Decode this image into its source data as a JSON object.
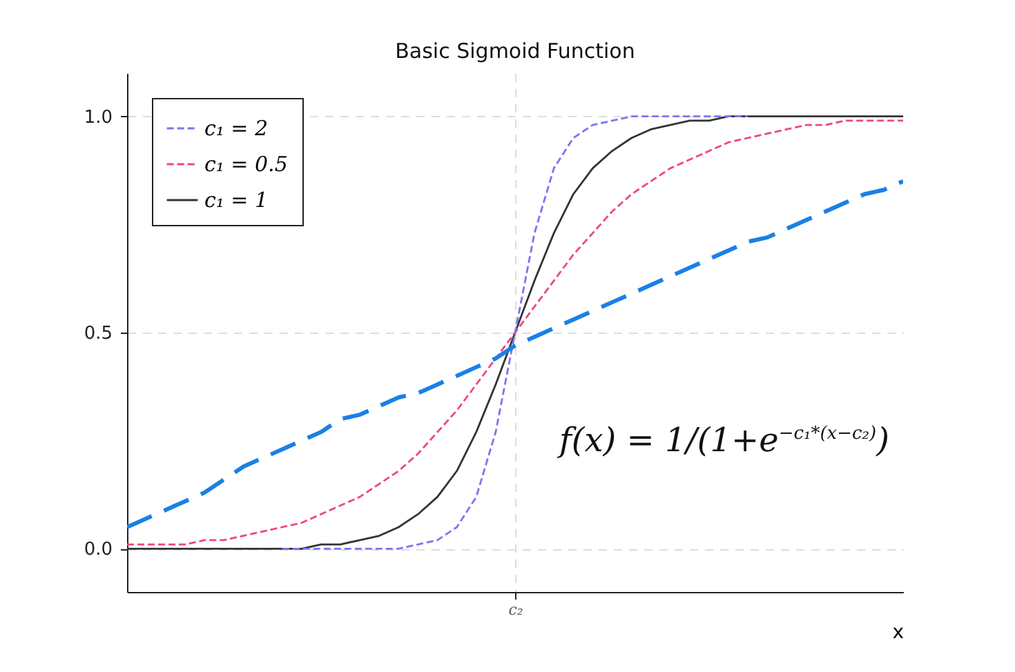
{
  "chart_data": {
    "type": "line",
    "title": "Basic Sigmoid Function",
    "xlabel": "x",
    "categories": [
      null,
      null,
      null,
      null,
      null,
      null,
      null,
      null,
      null,
      null,
      null,
      null,
      null,
      null,
      null,
      null,
      null,
      null,
      null,
      null,
      "c₂",
      null,
      null,
      null,
      null,
      null,
      null,
      null,
      null,
      null,
      null,
      null,
      null,
      null,
      null,
      null,
      null,
      null,
      null,
      null,
      null
    ],
    "series": [
      {
        "name": "c₁ = 2",
        "color": "#7777ee",
        "line_style": "dashed",
        "values": [
          null,
          null,
          null,
          null,
          null,
          null,
          null,
          null,
          0,
          0,
          0,
          0,
          0,
          0,
          0,
          0.01,
          0.02,
          0.05,
          0.12,
          0.27,
          0.5,
          0.73,
          0.88,
          0.95,
          0.98,
          0.99,
          1,
          1,
          1,
          1,
          1,
          1,
          1,
          null,
          null,
          null,
          null,
          null,
          null,
          null,
          null
        ]
      },
      {
        "name": "c₁ = 0.5",
        "color": "#ee4488",
        "line_style": "dashed",
        "values": [
          0.01,
          0.01,
          0.01,
          0.01,
          0.02,
          0.02,
          0.03,
          0.04,
          0.05,
          0.06,
          0.08,
          0.1,
          0.12,
          0.15,
          0.18,
          0.22,
          0.27,
          0.32,
          0.38,
          0.44,
          0.5,
          0.56,
          0.62,
          0.68,
          0.73,
          0.78,
          0.82,
          0.85,
          0.88,
          0.9,
          0.92,
          0.94,
          0.95,
          0.96,
          0.97,
          0.98,
          0.98,
          0.99,
          0.99,
          0.99,
          0.99
        ]
      },
      {
        "name": "c₁ = 1",
        "color": "#333333",
        "line_style": "solid",
        "values": [
          0,
          0,
          0,
          0,
          0,
          0,
          0,
          0,
          0,
          0,
          0.01,
          0.01,
          0.02,
          0.03,
          0.05,
          0.08,
          0.12,
          0.18,
          0.27,
          0.38,
          0.5,
          0.62,
          0.73,
          0.82,
          0.88,
          0.92,
          0.95,
          0.97,
          0.98,
          0.99,
          0.99,
          1,
          1,
          1,
          1,
          1,
          1,
          1,
          1,
          1,
          1
        ]
      },
      {
        "color": "#1a80e6",
        "line_style": "dashed",
        "values": [
          0.05,
          0.07,
          0.09,
          0.11,
          0.13,
          0.16,
          0.19,
          0.21,
          0.23,
          0.25,
          0.27,
          0.3,
          0.31,
          0.33,
          0.35,
          0.36,
          0.38,
          0.4,
          0.42,
          0.44,
          0.47,
          0.49,
          0.51,
          0.53,
          0.55,
          0.57,
          0.59,
          0.61,
          0.63,
          0.65,
          0.67,
          0.69,
          0.71,
          0.72,
          0.74,
          0.76,
          0.78,
          0.8,
          0.82,
          0.83,
          0.85
        ]
      }
    ],
    "ylim": [
      -0.1,
      1.1
    ],
    "yticks": [
      {
        "value": 0,
        "label": "0.0"
      },
      {
        "value": 0.5,
        "label": "0.5"
      },
      {
        "value": 1,
        "label": "1.0"
      }
    ],
    "grid": true,
    "legend": "top left",
    "marker": "none",
    "annotations": [
      "f(x) = 1/(1+e$^{−c₁*(x−c₂)}$)"
    ]
  }
}
